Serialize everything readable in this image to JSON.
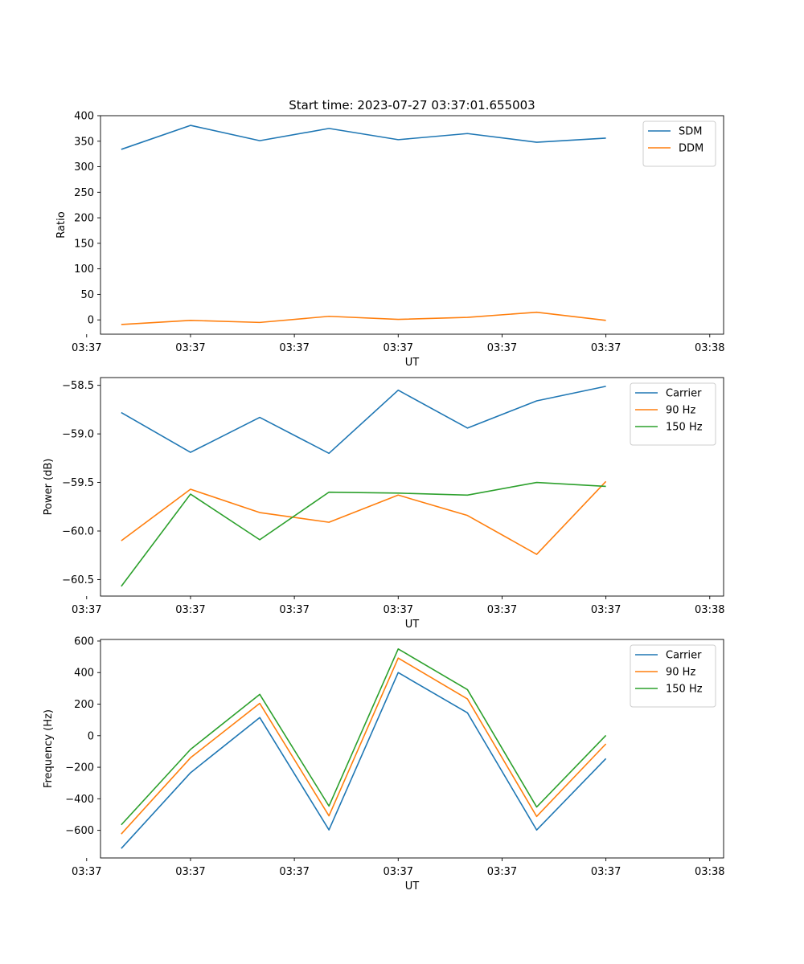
{
  "figure_title": "Start time: 2023-07-27 03:37:01.655003",
  "chart_data": [
    {
      "type": "line",
      "title": "Start time: 2023-07-27 03:37:01.655003",
      "xlabel": "UT",
      "ylabel": "Ratio",
      "x": [
        1,
        2,
        3,
        4,
        5,
        6,
        7,
        8
      ],
      "x_tick_values": [
        0.5,
        2,
        3.5,
        5,
        6.5,
        8,
        9.5
      ],
      "x_tick_labels": [
        "03:37",
        "03:37",
        "03:37",
        "03:37",
        "03:37",
        "03:37",
        "03:38"
      ],
      "xlim": [
        0.7,
        9.7
      ],
      "ylim": [
        -28,
        400
      ],
      "y_ticks": [
        0,
        50,
        100,
        150,
        200,
        250,
        300,
        350,
        400
      ],
      "legend_position": "top-right",
      "series": [
        {
          "name": "SDM",
          "color": "#1f77b4",
          "values": [
            334,
            381,
            351,
            375,
            353,
            365,
            348,
            356
          ]
        },
        {
          "name": "DDM",
          "color": "#ff7f0e",
          "values": [
            -9,
            -1,
            -5,
            7,
            1,
            5,
            15,
            -1
          ]
        }
      ]
    },
    {
      "type": "line",
      "title": "",
      "xlabel": "UT",
      "ylabel": "Power (dB)",
      "x": [
        1,
        2,
        3,
        4,
        5,
        6,
        7,
        8
      ],
      "x_tick_values": [
        0.5,
        2,
        3.5,
        5,
        6.5,
        8,
        9.5
      ],
      "x_tick_labels": [
        "03:37",
        "03:37",
        "03:37",
        "03:37",
        "03:37",
        "03:37",
        "03:38"
      ],
      "xlim": [
        0.7,
        9.7
      ],
      "ylim": [
        -60.67,
        -58.42
      ],
      "y_ticks": [
        -60.5,
        -60.0,
        -59.5,
        -59.0,
        -58.5
      ],
      "y_tick_labels": [
        "−60.5",
        "−60.0",
        "−59.5",
        "−59.0",
        "−58.5"
      ],
      "legend_position": "top-right",
      "series": [
        {
          "name": "Carrier",
          "color": "#1f77b4",
          "values": [
            -58.78,
            -59.19,
            -58.83,
            -59.2,
            -58.55,
            -58.94,
            -58.66,
            -58.51
          ]
        },
        {
          "name": "90 Hz",
          "color": "#ff7f0e",
          "values": [
            -60.1,
            -59.57,
            -59.81,
            -59.91,
            -59.63,
            -59.84,
            -60.24,
            -59.49
          ]
        },
        {
          "name": "150 Hz",
          "color": "#2ca02c",
          "values": [
            -60.57,
            -59.62,
            -60.09,
            -59.6,
            -59.61,
            -59.63,
            -59.5,
            -59.54
          ]
        }
      ]
    },
    {
      "type": "line",
      "title": "",
      "xlabel": "UT",
      "ylabel": "Frequency (Hz)",
      "x": [
        1,
        2,
        3,
        4,
        5,
        6,
        7,
        8
      ],
      "x_tick_values": [
        0.5,
        2,
        3.5,
        5,
        6.5,
        8,
        9.5
      ],
      "x_tick_labels": [
        "03:37",
        "03:37",
        "03:37",
        "03:37",
        "03:37",
        "03:37",
        "03:38"
      ],
      "xlim": [
        0.7,
        9.7
      ],
      "ylim": [
        -775,
        610
      ],
      "y_ticks": [
        -600,
        -400,
        -200,
        0,
        200,
        400,
        600
      ],
      "y_tick_labels": [
        "−600",
        "−400",
        "−200",
        "0",
        "200",
        "400",
        "600"
      ],
      "legend_position": "top-right",
      "series": [
        {
          "name": "Carrier",
          "color": "#1f77b4",
          "values": [
            -715,
            -235,
            115,
            -597,
            400,
            145,
            -598,
            -145
          ]
        },
        {
          "name": "90 Hz",
          "color": "#ff7f0e",
          "values": [
            -623,
            -140,
            205,
            -508,
            492,
            233,
            -512,
            -52
          ]
        },
        {
          "name": "150 Hz",
          "color": "#2ca02c",
          "values": [
            -565,
            -87,
            262,
            -446,
            550,
            292,
            -452,
            2
          ]
        }
      ]
    }
  ]
}
